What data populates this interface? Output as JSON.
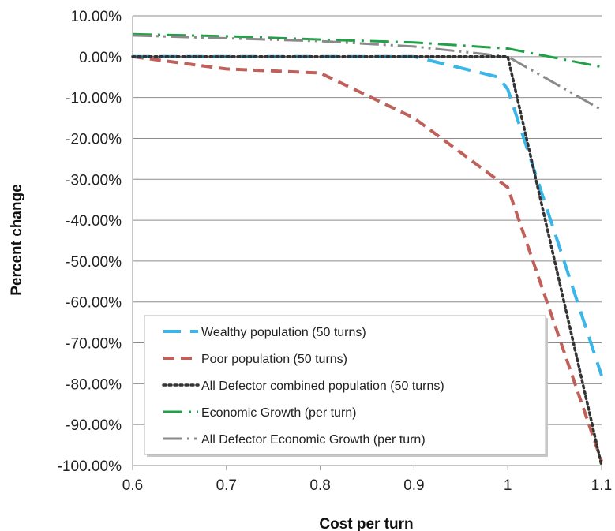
{
  "chart_data": {
    "type": "line",
    "title": "",
    "xlabel": "Cost per turn",
    "ylabel": "Percent change",
    "xlim": [
      0.6,
      1.1
    ],
    "ylim": [
      -100,
      10
    ],
    "x_ticks": [
      "0.6",
      "0.7",
      "0.8",
      "0.9",
      "1",
      "1.1"
    ],
    "y_ticks": [
      "10.00%",
      "0.00%",
      "-10.00%",
      "-20.00%",
      "-30.00%",
      "-40.00%",
      "-50.00%",
      "-60.00%",
      "-70.00%",
      "-80.00%",
      "-90.00%",
      "-100.00%"
    ],
    "grid": "horizontal",
    "legend_position": "bottom-left",
    "series": [
      {
        "name": "Wealthy population (50 turns)",
        "color": "#3ab6e8",
        "style": "long-dash",
        "x": [
          0.6,
          0.9,
          0.99,
          1.0,
          1.1
        ],
        "y": [
          0,
          0,
          -5,
          -8,
          -78
        ]
      },
      {
        "name": "Poor population (50 turns)",
        "color": "#c0605a",
        "style": "dash",
        "x": [
          0.6,
          0.7,
          0.8,
          0.9,
          1.0,
          1.1
        ],
        "y": [
          0,
          -3,
          -4,
          -15,
          -32,
          -99
        ]
      },
      {
        "name": "All Defector combined population (50 turns)",
        "color": "#333333",
        "style": "dotted",
        "x": [
          0.6,
          0.99,
          1.0,
          1.1
        ],
        "y": [
          0,
          0,
          0,
          -100
        ]
      },
      {
        "name": "Economic Growth (per turn)",
        "color": "#21a048",
        "style": "dash-dot",
        "x": [
          0.6,
          0.7,
          0.8,
          0.9,
          1.0,
          1.1
        ],
        "y": [
          5.5,
          5,
          4.2,
          3.5,
          2,
          -2.5
        ]
      },
      {
        "name": "All Defector Economic Growth (per turn)",
        "color": "#8a8a8a",
        "style": "dash-dot-dot",
        "x": [
          0.6,
          0.7,
          0.8,
          0.9,
          1.0,
          1.1
        ],
        "y": [
          5.2,
          4.5,
          3.8,
          2.5,
          0,
          -13
        ]
      }
    ]
  }
}
